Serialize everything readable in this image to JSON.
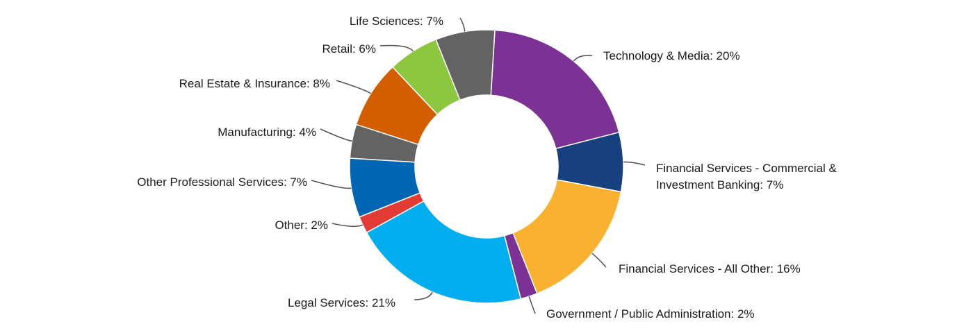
{
  "chart_data": {
    "type": "pie",
    "donut": true,
    "slices": [
      {
        "label": "Technology & Media: 20%",
        "value": 20,
        "color": "#7B3294"
      },
      {
        "label": "Financial Services - Commercial & Investment Banking: 7%",
        "label_lines": [
          "Financial Services - Commercial &",
          "Investment Banking: 7%"
        ],
        "value": 7,
        "color": "#17407F"
      },
      {
        "label": "Financial Services - All Other: 16%",
        "value": 16,
        "color": "#FBB130"
      },
      {
        "label": "Government / Public Administration: 2%",
        "value": 2,
        "color": "#7B3294"
      },
      {
        "label": "Legal Services: 21%",
        "value": 21,
        "color": "#00AEEF"
      },
      {
        "label": "Other: 2%",
        "value": 2,
        "color": "#E23B35"
      },
      {
        "label": "Other Professional Services: 7%",
        "value": 7,
        "color": "#0066B3"
      },
      {
        "label": "Manufacturing: 4%",
        "value": 4,
        "color": "#636363"
      },
      {
        "label": "Real Estate & Insurance: 8%",
        "value": 8,
        "color": "#D35E00"
      },
      {
        "label": "Retail: 6%",
        "value": 6,
        "color": "#8DC63F"
      },
      {
        "label": "Life Sciences: 7%",
        "value": 7,
        "color": "#636363"
      }
    ]
  }
}
